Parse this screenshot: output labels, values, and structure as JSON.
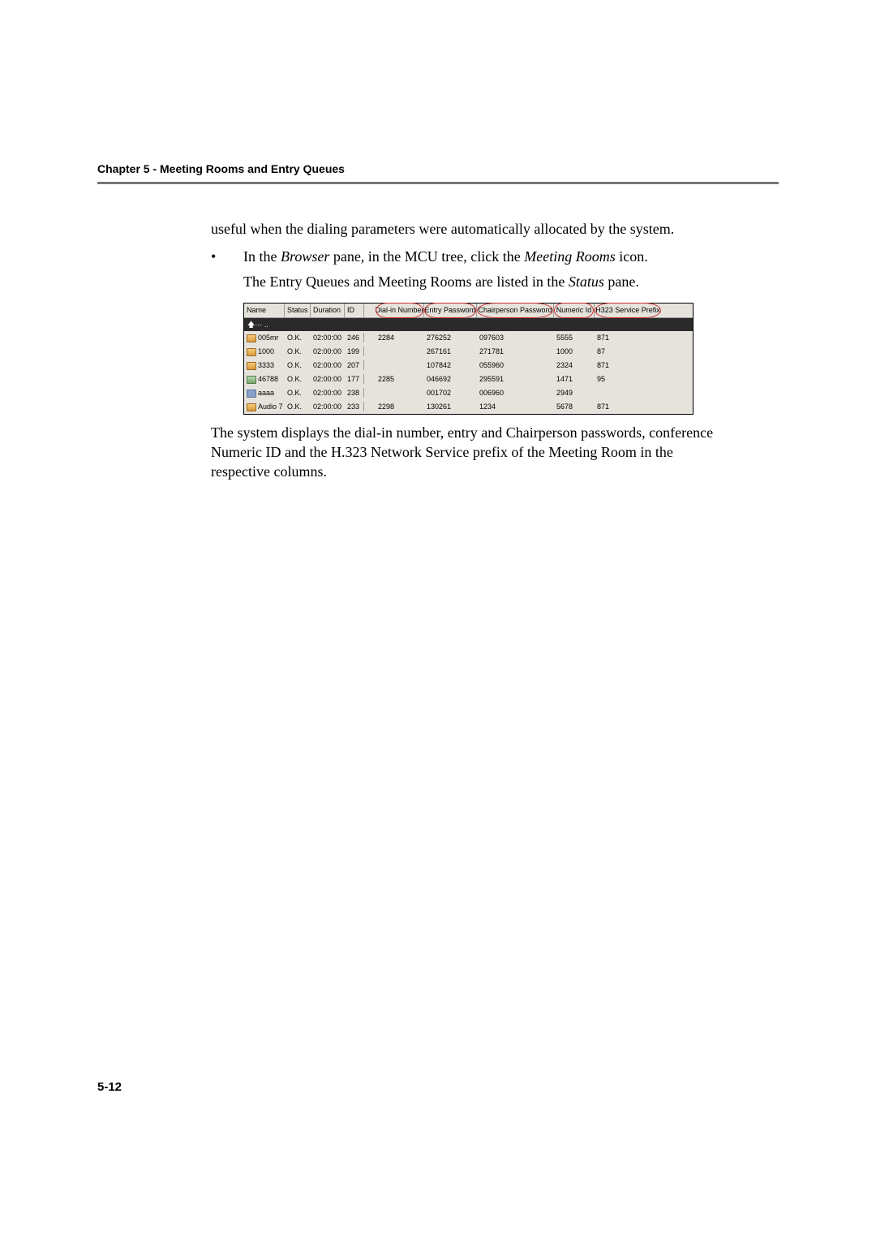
{
  "header": {
    "chapter_title": "Chapter 5 - Meeting Rooms and Entry Queues"
  },
  "body": {
    "intro_para": "useful when the dialing parameters were automatically allocated by the system.",
    "bullet_prefix": "In the ",
    "bullet_browser": "Browser",
    "bullet_mid": " pane, in the MCU tree, click the ",
    "bullet_meeting_rooms": "Meeting Rooms",
    "bullet_suffix": " icon.",
    "bullet_line2_a": "The Entry Queues and Meeting Rooms are listed in the ",
    "bullet_line2_status": "Status",
    "bullet_line2_b": " pane.",
    "after_shot": "The system displays the dial-in number, entry and Chairperson passwords, conference Numeric ID and the H.323 Network Service prefix of the Meeting Room in the respective columns."
  },
  "shot": {
    "toolbar_glyph": "🡅⋯ ..",
    "headers": {
      "name": "Name",
      "status": "Status",
      "duration": "Duration",
      "id": "ID",
      "dial": "Dial-in Number",
      "entry": "Entry Password",
      "chair": "Chairperson Password",
      "numeric": "Numeric Id",
      "h323": "H323 Service Prefix"
    },
    "rows": [
      {
        "icon": "room",
        "name": "005mr",
        "status": "O.K.",
        "duration": "02:00:00",
        "id": "246",
        "dial": "2284",
        "entry": "276252",
        "chair": "097603",
        "numeric": "5555",
        "h323": "871"
      },
      {
        "icon": "room",
        "name": "1000",
        "status": "O.K.",
        "duration": "02:00:00",
        "id": "199",
        "dial": "",
        "entry": "267161",
        "chair": "271781",
        "numeric": "1000",
        "h323": "87"
      },
      {
        "icon": "room",
        "name": "3333",
        "status": "O.K.",
        "duration": "02:00:00",
        "id": "207",
        "dial": "",
        "entry": "107842",
        "chair": "055960",
        "numeric": "2324",
        "h323": "871"
      },
      {
        "icon": "eq",
        "name": "46788",
        "status": "O.K.",
        "duration": "02:00:00",
        "id": "177",
        "dial": "2285",
        "entry": "046692",
        "chair": "295591",
        "numeric": "1471",
        "h323": "95"
      },
      {
        "icon": "gw",
        "name": "aaaa",
        "status": "O.K.",
        "duration": "02:00:00",
        "id": "238",
        "dial": "",
        "entry": "001702",
        "chair": "006960",
        "numeric": "2949",
        "h323": ""
      },
      {
        "icon": "room",
        "name": "Audio 7",
        "status": "O.K.",
        "duration": "02:00:00",
        "id": "233",
        "dial": "2298",
        "entry": "130261",
        "chair": "1234",
        "numeric": "5678",
        "h323": "871"
      }
    ]
  },
  "footer": {
    "page_number": "5-12"
  }
}
